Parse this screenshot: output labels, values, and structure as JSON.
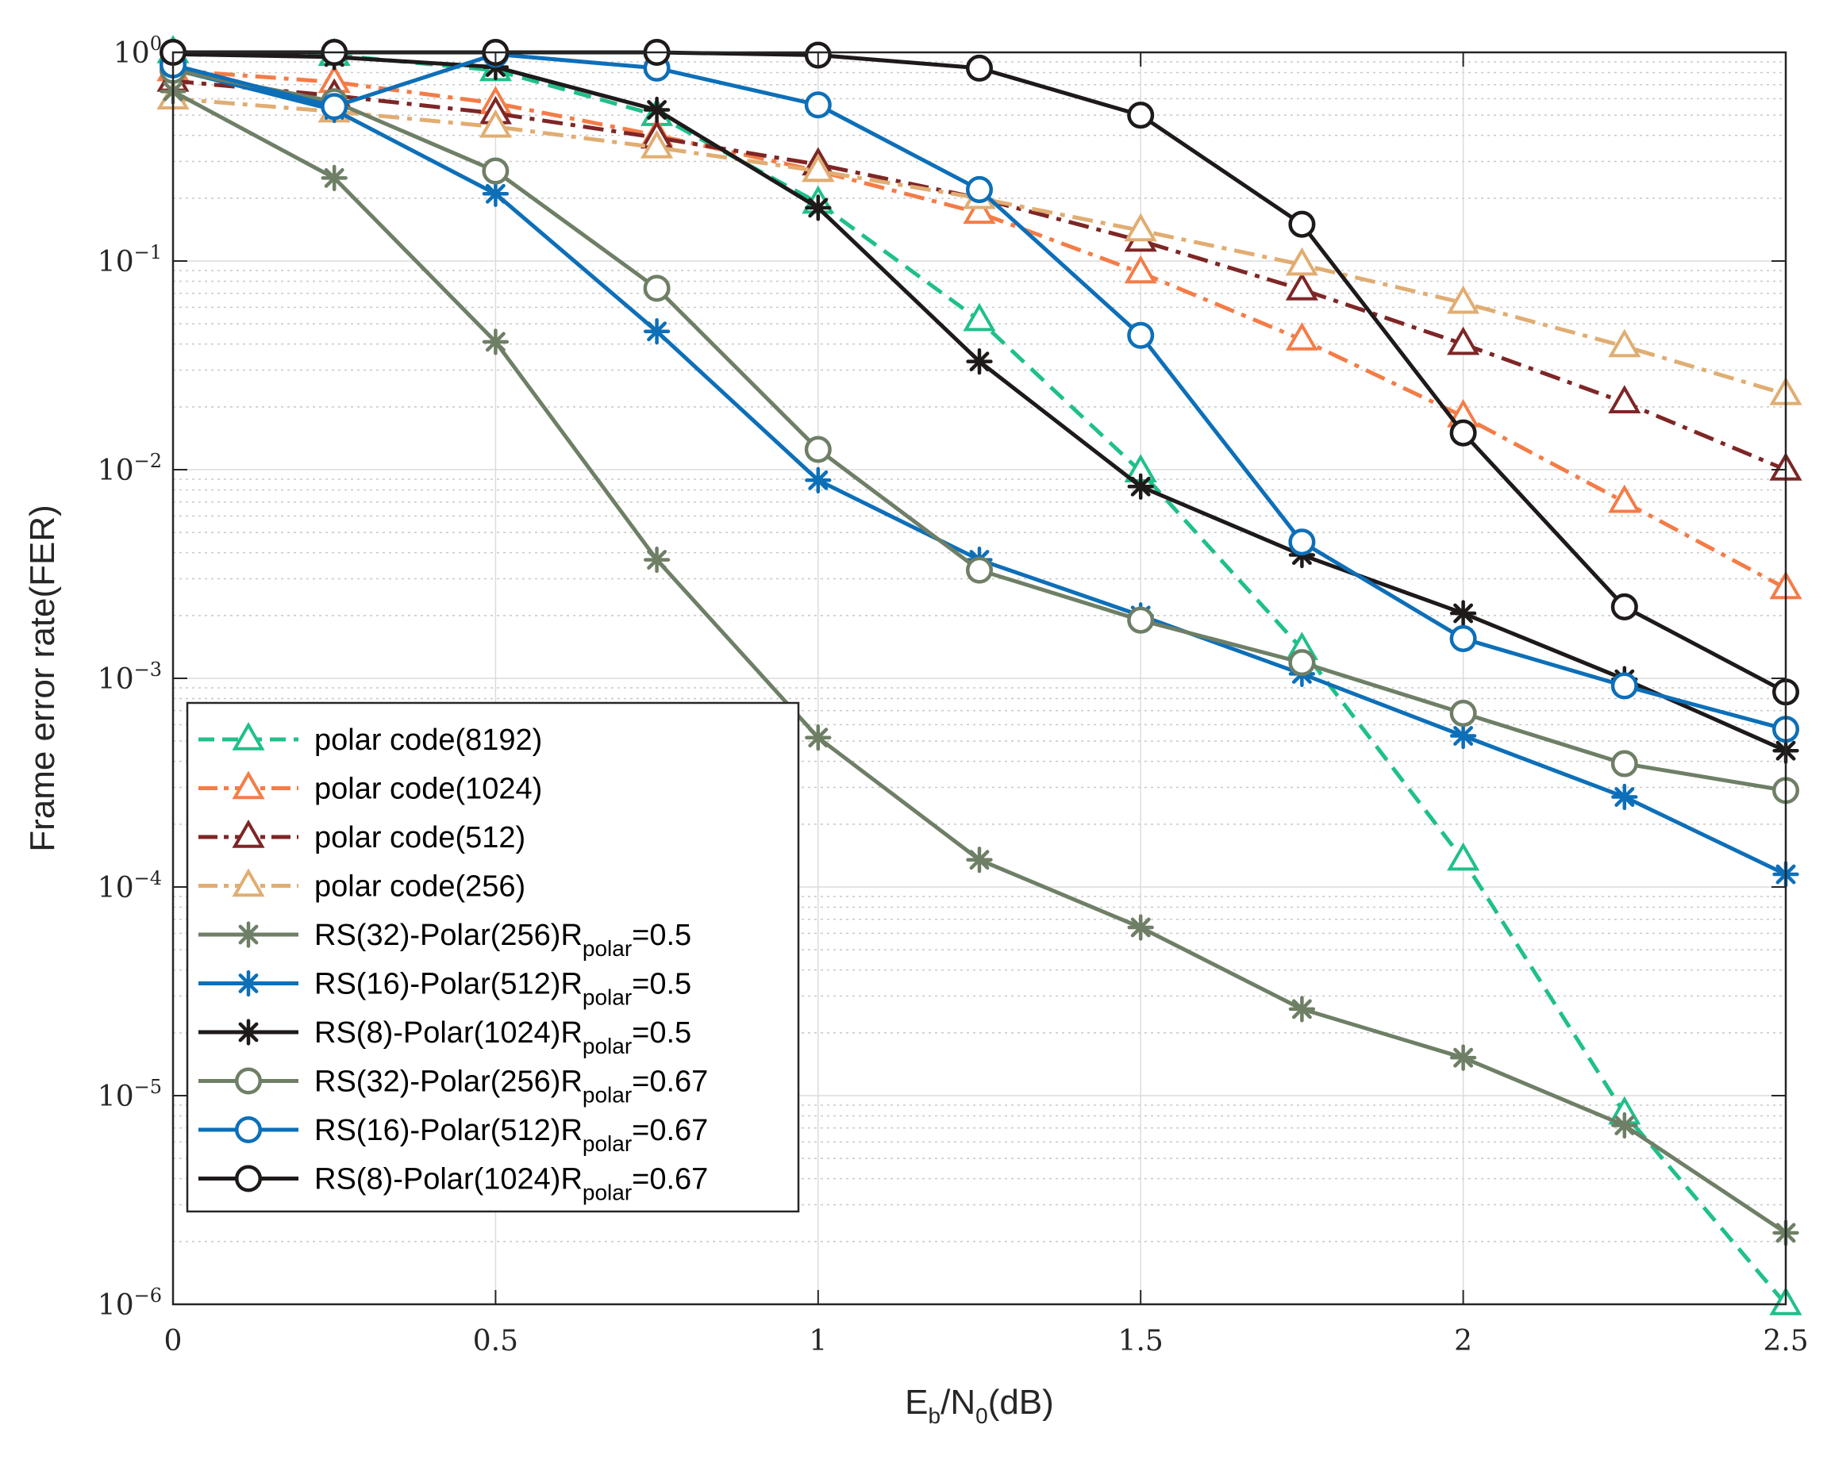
{
  "chart_data": {
    "type": "line",
    "title": "",
    "xlabel": {
      "main": "E",
      "sub1": "b",
      "mid": "/N",
      "sub2": "0",
      "tail": "(dB)"
    },
    "ylabel": "Frame error rate(FER)",
    "xlim": [
      0,
      2.5
    ],
    "ylim": [
      1e-06,
      1
    ],
    "yscale": "log",
    "grid": true,
    "minor_grid": true,
    "legend_position": "bottom-left",
    "x_ticks": [
      "0",
      "0.5",
      "1",
      "1.5",
      "2",
      "2.5"
    ],
    "x_tick_values": [
      0,
      0.5,
      1,
      1.5,
      2,
      2.5
    ],
    "y_ticks": [
      {
        "base": "10",
        "exp": "0",
        "value": 1
      },
      {
        "base": "10",
        "exp": "−1",
        "value": 0.1
      },
      {
        "base": "10",
        "exp": "−2",
        "value": 0.01
      },
      {
        "base": "10",
        "exp": "−3",
        "value": 0.001
      },
      {
        "base": "10",
        "exp": "−4",
        "value": 0.0001
      },
      {
        "base": "10",
        "exp": "−5",
        "value": 1e-05
      },
      {
        "base": "10",
        "exp": "−6",
        "value": 1e-06
      }
    ],
    "x": [
      0,
      0.25,
      0.5,
      0.75,
      1,
      1.25,
      1.5,
      1.75,
      2,
      2.25,
      2.5
    ],
    "series": [
      {
        "name": "polar code(8192)",
        "label_main": "polar code(8192)",
        "color": "#1fc08a",
        "dash": "dash",
        "marker": "triangle",
        "x": [
          0,
          0.25,
          0.5,
          0.75,
          1,
          1.25,
          1.5,
          1.75,
          2,
          2.25,
          2.5
        ],
        "values": [
          1.0,
          0.97,
          0.82,
          0.5,
          0.19,
          0.052,
          0.0098,
          0.00138,
          0.000135,
          8.2e-06,
          1e-06
        ]
      },
      {
        "name": "polar code(1024)",
        "label_main": "polar code(1024)",
        "color": "#f47c47",
        "dash": "dashdot",
        "marker": "triangle",
        "x": [
          0,
          0.25,
          0.5,
          0.75,
          1,
          1.25,
          1.5,
          1.75,
          2,
          2.25,
          2.5
        ],
        "values": [
          0.82,
          0.72,
          0.57,
          0.4,
          0.27,
          0.17,
          0.088,
          0.042,
          0.018,
          0.007,
          0.0027
        ]
      },
      {
        "name": "polar code(512)",
        "label_main": "polar code(512)",
        "color": "#7e2626",
        "dash": "dashdot",
        "marker": "triangle",
        "x": [
          0,
          0.25,
          0.5,
          0.75,
          1,
          1.25,
          1.5,
          1.75,
          2,
          2.25,
          2.5
        ],
        "values": [
          0.73,
          0.62,
          0.51,
          0.39,
          0.29,
          0.2,
          0.125,
          0.073,
          0.04,
          0.021,
          0.01
        ]
      },
      {
        "name": "polar code(256)",
        "label_main": "polar code(256)",
        "color": "#e0ad72",
        "dash": "dashdot",
        "marker": "triangle",
        "x": [
          0,
          0.25,
          0.5,
          0.75,
          1,
          1.25,
          1.5,
          1.75,
          2,
          2.25,
          2.5
        ],
        "values": [
          0.6,
          0.52,
          0.44,
          0.35,
          0.27,
          0.2,
          0.14,
          0.096,
          0.063,
          0.039,
          0.023
        ]
      },
      {
        "name": "RS(32)-Polar(256)Rpolar=0.5",
        "label_main": "RS(32)-Polar(256)R",
        "label_sub": "polar",
        "label_tail": "=0.5",
        "color": "#6e7f66",
        "dash": "solid",
        "marker": "star",
        "x": [
          0,
          0.25,
          0.5,
          0.75,
          1,
          1.25,
          1.5,
          1.75,
          2,
          2.25,
          2.5
        ],
        "values": [
          0.65,
          0.25,
          0.041,
          0.0037,
          0.00052,
          0.000135,
          6.4e-05,
          2.6e-05,
          1.52e-05,
          7.2e-06,
          2.2e-06
        ]
      },
      {
        "name": "RS(16)-Polar(512)Rpolar=0.5",
        "label_main": "RS(16)-Polar(512)R",
        "label_sub": "polar",
        "label_tail": "=0.5",
        "color": "#0d6fb8",
        "dash": "solid",
        "marker": "star",
        "x": [
          0,
          0.25,
          0.5,
          0.75,
          1,
          1.25,
          1.5,
          1.75,
          2,
          2.25,
          2.5
        ],
        "values": [
          0.83,
          0.53,
          0.21,
          0.046,
          0.0089,
          0.0037,
          0.002,
          0.00105,
          0.00053,
          0.00027,
          0.000115
        ]
      },
      {
        "name": "RS(8)-Polar(1024)Rpolar=0.5",
        "label_main": "RS(8)-Polar(1024)R",
        "label_sub": "polar",
        "label_tail": "=0.5",
        "color": "#1f1a1a",
        "dash": "solid",
        "marker": "star",
        "x": [
          0,
          0.25,
          0.5,
          0.75,
          1,
          1.25,
          1.5,
          1.75,
          2,
          2.25,
          2.5
        ],
        "values": [
          0.98,
          0.95,
          0.85,
          0.53,
          0.18,
          0.033,
          0.0083,
          0.0039,
          0.00205,
          0.00099,
          0.00045
        ]
      },
      {
        "name": "RS(32)-Polar(256)Rpolar=0.67",
        "label_main": "RS(32)-Polar(256)R",
        "label_sub": "polar",
        "label_tail": "=0.67",
        "color": "#6e7f66",
        "dash": "solid",
        "marker": "circle",
        "x": [
          0,
          0.25,
          0.5,
          0.75,
          1,
          1.25,
          1.5,
          1.75,
          2,
          2.25,
          2.5
        ],
        "values": [
          0.82,
          0.58,
          0.27,
          0.074,
          0.0125,
          0.0033,
          0.0019,
          0.00119,
          0.00068,
          0.00039,
          0.00029
        ]
      },
      {
        "name": "RS(16)-Polar(512)Rpolar=0.67",
        "label_main": "RS(16)-Polar(512)R",
        "label_sub": "polar",
        "label_tail": "=0.67",
        "color": "#0d6fb8",
        "dash": "solid",
        "marker": "circle",
        "x": [
          0,
          0.25,
          0.5,
          0.75,
          1,
          1.25,
          1.5,
          1.75,
          2,
          2.25,
          2.5
        ],
        "values": [
          0.87,
          0.55,
          0.98,
          0.84,
          0.56,
          0.22,
          0.044,
          0.0045,
          0.00155,
          0.00092,
          0.00057
        ]
      },
      {
        "name": "RS(8)-Polar(1024)Rpolar=0.67",
        "label_main": "RS(8)-Polar(1024)R",
        "label_sub": "polar",
        "label_tail": "=0.67",
        "color": "#1f1a1a",
        "dash": "solid",
        "marker": "circle",
        "x": [
          0,
          0.25,
          0.5,
          0.75,
          1,
          1.25,
          1.5,
          1.75,
          2,
          2.25,
          2.5
        ],
        "values": [
          1.0,
          1.0,
          1.0,
          1.0,
          0.97,
          0.84,
          0.5,
          0.15,
          0.015,
          0.0022,
          0.00086
        ]
      }
    ]
  }
}
